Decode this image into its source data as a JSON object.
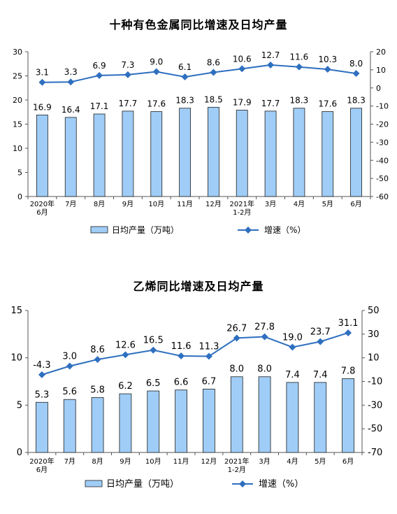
{
  "charts": [
    {
      "title": "十种有色金属同比增速及日均产量",
      "legend_bar": "日均产量（万吨）",
      "legend_line": "增速（%）",
      "categories": [
        [
          "2020年",
          "6月"
        ],
        [
          "7月"
        ],
        [
          "8月"
        ],
        [
          "9月"
        ],
        [
          "10月"
        ],
        [
          "11月"
        ],
        [
          "12月"
        ],
        [
          "2021年",
          "1-2月"
        ],
        [
          "3月"
        ],
        [
          "4月"
        ],
        [
          "5月"
        ],
        [
          "6月"
        ]
      ],
      "left_ticks": [
        "0",
        "5",
        "10",
        "15",
        "20",
        "25",
        "30"
      ],
      "right_ticks": [
        "-60",
        "-50",
        "-40",
        "-30",
        "-20",
        "-10",
        "0",
        "10",
        "20"
      ]
    },
    {
      "title": "乙烯同比增速及日均产量",
      "legend_bar": "日均产量（万吨）",
      "legend_line": "增速（%）",
      "categories": [
        [
          "2020年",
          "6月"
        ],
        [
          "7月"
        ],
        [
          "8月"
        ],
        [
          "9月"
        ],
        [
          "10月"
        ],
        [
          "11月"
        ],
        [
          "12月"
        ],
        [
          "2021年",
          "1-2月"
        ],
        [
          "3月"
        ],
        [
          "4月"
        ],
        [
          "5月"
        ],
        [
          "6月"
        ]
      ],
      "left_ticks": [
        "0",
        "5",
        "10",
        "15"
      ],
      "right_ticks": [
        "-70",
        "-50",
        "-30",
        "-10",
        "10",
        "30",
        "50"
      ]
    }
  ],
  "chart_data": [
    {
      "type": "bar+line",
      "title": "十种有色金属同比增速及日均产量",
      "categories": [
        "2020年6月",
        "7月",
        "8月",
        "9月",
        "10月",
        "11月",
        "12月",
        "2021年1-2月",
        "3月",
        "4月",
        "5月",
        "6月"
      ],
      "series": [
        {
          "name": "日均产量（万吨）",
          "type": "bar",
          "axis": "left",
          "values": [
            16.9,
            16.4,
            17.1,
            17.7,
            17.6,
            18.3,
            18.5,
            17.9,
            17.7,
            18.3,
            17.6,
            18.3
          ]
        },
        {
          "name": "增速（%）",
          "type": "line",
          "axis": "right",
          "values": [
            3.1,
            3.3,
            6.9,
            7.3,
            9.0,
            6.1,
            8.6,
            10.6,
            12.7,
            11.6,
            10.3,
            8.0
          ]
        }
      ],
      "ylim_left": [
        0,
        30
      ],
      "ylim_right": [
        -60,
        20
      ],
      "legend": "bottom",
      "colors": {
        "bar": "#9fcdf7",
        "bar_stroke": "#1f1f1f",
        "line": "#2e6fbf"
      }
    },
    {
      "type": "bar+line",
      "title": "乙烯同比增速及日均产量",
      "categories": [
        "2020年6月",
        "7月",
        "8月",
        "9月",
        "10月",
        "11月",
        "12月",
        "2021年1-2月",
        "3月",
        "4月",
        "5月",
        "6月"
      ],
      "series": [
        {
          "name": "日均产量（万吨）",
          "type": "bar",
          "axis": "left",
          "values": [
            5.3,
            5.6,
            5.8,
            6.2,
            6.5,
            6.6,
            6.7,
            8.0,
            8.0,
            7.4,
            7.4,
            7.8
          ]
        },
        {
          "name": "增速（%）",
          "type": "line",
          "axis": "right",
          "values": [
            -4.3,
            3.0,
            8.6,
            12.6,
            16.5,
            11.6,
            11.3,
            26.7,
            27.8,
            19.0,
            23.7,
            31.1
          ]
        }
      ],
      "ylim_left": [
        0,
        15
      ],
      "ylim_right": [
        -70,
        50
      ],
      "legend": "bottom",
      "colors": {
        "bar": "#9fcdf7",
        "bar_stroke": "#1f1f1f",
        "line": "#2e6fbf"
      }
    }
  ]
}
